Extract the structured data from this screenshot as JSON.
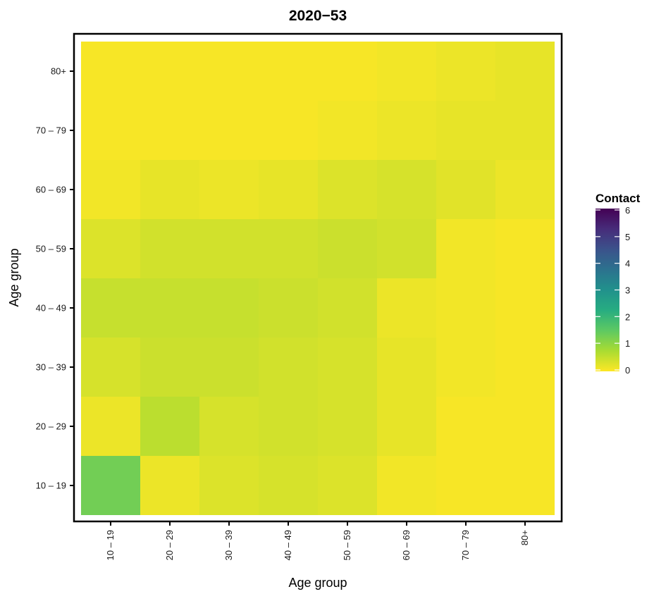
{
  "chart_data": {
    "type": "heatmap",
    "title": "2020−53",
    "xlabel": "Age group",
    "ylabel": "Age group",
    "x_categories": [
      "10 – 19",
      "20 – 29",
      "30 – 39",
      "40 – 49",
      "50 – 59",
      "60 – 69",
      "70 – 79",
      "80+"
    ],
    "y_categories": [
      "10 – 19",
      "20 – 29",
      "30 – 39",
      "40 – 49",
      "50 – 59",
      "60 – 69",
      "70 – 79",
      "80+"
    ],
    "values": [
      [
        1.3,
        0.15,
        0.3,
        0.35,
        0.3,
        0.1,
        0.05,
        0.05
      ],
      [
        0.15,
        0.6,
        0.35,
        0.4,
        0.35,
        0.2,
        0.05,
        0.05
      ],
      [
        0.35,
        0.45,
        0.45,
        0.4,
        0.35,
        0.2,
        0.1,
        0.05
      ],
      [
        0.5,
        0.5,
        0.5,
        0.45,
        0.4,
        0.15,
        0.1,
        0.05
      ],
      [
        0.3,
        0.4,
        0.4,
        0.4,
        0.45,
        0.4,
        0.1,
        0.05
      ],
      [
        0.1,
        0.2,
        0.15,
        0.2,
        0.3,
        0.35,
        0.25,
        0.15
      ],
      [
        0.05,
        0.05,
        0.05,
        0.05,
        0.1,
        0.15,
        0.2,
        0.2
      ],
      [
        0.05,
        0.05,
        0.05,
        0.05,
        0.05,
        0.1,
        0.15,
        0.2
      ]
    ],
    "legend": {
      "title": "Contact",
      "ticks": [
        "0",
        "1",
        "2",
        "3",
        "4",
        "5",
        "6"
      ],
      "range": [
        0,
        6
      ],
      "colormap": "viridis (reversed)"
    }
  }
}
